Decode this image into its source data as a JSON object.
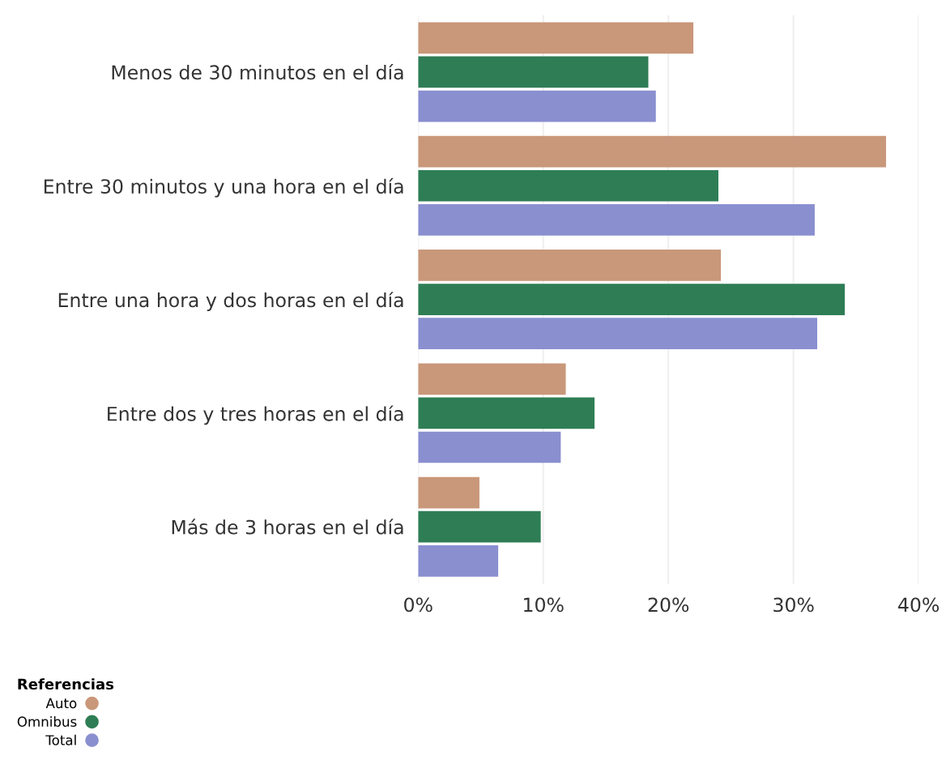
{
  "chart_data": {
    "type": "bar",
    "orientation": "horizontal",
    "categories": [
      "Menos de 30 minutos en el día",
      "Entre 30 minutos y una hora en el día",
      "Entre una hora y dos horas en el día",
      "Entre dos y tres horas en el día",
      "Más de 3 horas en el día"
    ],
    "series": [
      {
        "name": "Auto",
        "color": "#c9977a",
        "values": [
          22.0,
          37.4,
          24.2,
          11.8,
          4.9
        ]
      },
      {
        "name": "Omnibus",
        "color": "#2e7d55",
        "values": [
          18.4,
          24.0,
          34.1,
          14.1,
          9.8
        ]
      },
      {
        "name": "Total",
        "color": "#8a8fd0",
        "values": [
          19.0,
          31.7,
          31.9,
          11.4,
          6.4
        ]
      }
    ],
    "xlim": [
      0,
      40
    ],
    "xticks": [
      {
        "value": 0,
        "label": "0%"
      },
      {
        "value": 10,
        "label": "10%"
      },
      {
        "value": 20,
        "label": "20%"
      },
      {
        "value": 30,
        "label": "30%"
      },
      {
        "value": 40,
        "label": "40%"
      }
    ],
    "grid": "x",
    "legend": "bottom left",
    "legend_title": "Referencias"
  }
}
